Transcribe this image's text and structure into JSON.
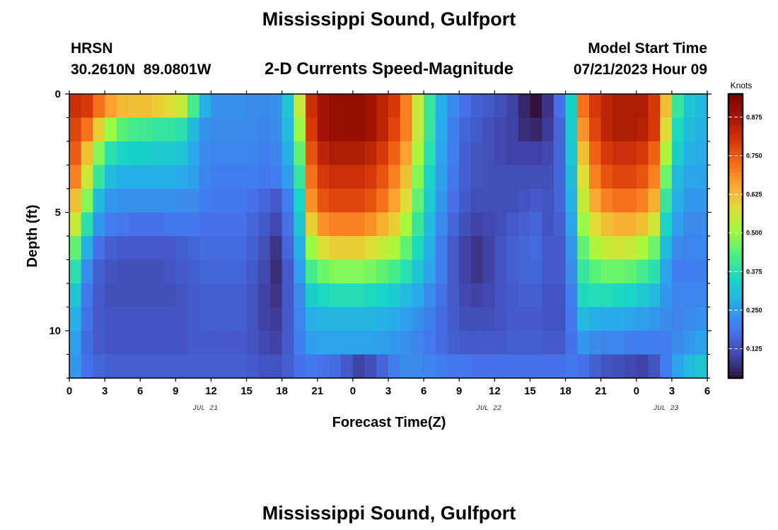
{
  "title": "Mississippi Sound, Gulfport",
  "title_repeat": "Mississippi Sound, Gulfport",
  "station_id": "HRSN",
  "station_coords": "30.2610N  89.0801W",
  "subtitle": "2-D Currents Speed-Magnitude",
  "model_start_label": "Model Start Time",
  "model_start_value": "07/21/2023 Hour 09",
  "chart_data": {
    "type": "heatmap",
    "title": "Mississippi Sound, Gulfport",
    "subtitle": "2-D Currents Speed-Magnitude",
    "xlabel": "Forecast Time(Z)",
    "ylabel": "Depth (ft)",
    "x_hours": [
      0,
      54
    ],
    "x_tick_hours": [
      0,
      3,
      6,
      9,
      12,
      15,
      18,
      21,
      24,
      27,
      30,
      33,
      36,
      39,
      42,
      45,
      48,
      51,
      54
    ],
    "x_tick_labels": [
      "0",
      "3",
      "6",
      "9",
      "12",
      "15",
      "18",
      "21",
      "0",
      "3",
      "6",
      "9",
      "12",
      "15",
      "18",
      "21",
      "0",
      "3",
      "6"
    ],
    "date_labels": [
      {
        "text": "JUL 21",
        "hour": 11.5
      },
      {
        "text": "JUL 22",
        "hour": 35.5
      },
      {
        "text": "JUL 23",
        "hour": 50.5
      }
    ],
    "ylim": [
      0,
      12
    ],
    "y_ticks": [
      0,
      5,
      10
    ],
    "y_tick_labels": [
      "0",
      "5",
      "10"
    ],
    "depth_layers": [
      0.5,
      1.5,
      2.5,
      3.5,
      4.5,
      5.5,
      6.5,
      7.5,
      8.5,
      9.5,
      10.5,
      11.5
    ],
    "colorbar": {
      "label": "Knots",
      "range": [
        0.03,
        0.95
      ],
      "ticks": [
        0.125,
        0.25,
        0.375,
        0.5,
        0.625,
        0.75,
        0.875
      ],
      "tick_labels": [
        "0.125",
        "0.250",
        "0.375",
        "0.500",
        "0.625",
        "0.750",
        "0.875"
      ],
      "colormap": "turbo"
    },
    "speed_knots": {
      "times_hours": [
        0,
        1,
        2,
        3,
        4,
        5,
        6,
        7,
        8,
        9,
        10,
        11,
        12,
        13,
        14,
        15,
        16,
        17,
        18,
        19,
        20,
        21,
        22,
        23,
        24,
        25,
        26,
        27,
        28,
        29,
        30,
        31,
        32,
        33,
        34,
        35,
        36,
        37,
        38,
        39,
        40,
        41,
        42,
        43,
        44,
        45,
        46,
        47,
        48,
        49,
        50,
        51,
        52,
        53
      ],
      "rows": [
        [
          0.82,
          0.8,
          0.72,
          0.66,
          0.63,
          0.62,
          0.62,
          0.6,
          0.58,
          0.55,
          0.42,
          0.28,
          0.23,
          0.23,
          0.23,
          0.22,
          0.22,
          0.23,
          0.32,
          0.55,
          0.82,
          0.88,
          0.9,
          0.9,
          0.9,
          0.88,
          0.84,
          0.8,
          0.7,
          0.55,
          0.4,
          0.28,
          0.22,
          0.18,
          0.15,
          0.14,
          0.12,
          0.1,
          0.06,
          0.03,
          0.08,
          0.18,
          0.34,
          0.72,
          0.8,
          0.84,
          0.86,
          0.86,
          0.86,
          0.8,
          0.62,
          0.4,
          0.32,
          0.3
        ],
        [
          0.78,
          0.72,
          0.6,
          0.5,
          0.44,
          0.42,
          0.41,
          0.4,
          0.4,
          0.38,
          0.3,
          0.23,
          0.22,
          0.22,
          0.22,
          0.22,
          0.21,
          0.22,
          0.3,
          0.5,
          0.8,
          0.88,
          0.9,
          0.9,
          0.9,
          0.88,
          0.84,
          0.78,
          0.7,
          0.55,
          0.4,
          0.27,
          0.2,
          0.16,
          0.14,
          0.12,
          0.11,
          0.1,
          0.07,
          0.06,
          0.09,
          0.16,
          0.33,
          0.68,
          0.78,
          0.84,
          0.86,
          0.86,
          0.85,
          0.8,
          0.58,
          0.36,
          0.3,
          0.28
        ],
        [
          0.75,
          0.62,
          0.48,
          0.38,
          0.35,
          0.34,
          0.34,
          0.33,
          0.33,
          0.32,
          0.27,
          0.22,
          0.21,
          0.21,
          0.21,
          0.21,
          0.2,
          0.21,
          0.28,
          0.45,
          0.76,
          0.84,
          0.86,
          0.86,
          0.86,
          0.84,
          0.8,
          0.74,
          0.66,
          0.52,
          0.38,
          0.26,
          0.2,
          0.15,
          0.13,
          0.12,
          0.11,
          0.1,
          0.1,
          0.1,
          0.11,
          0.16,
          0.32,
          0.62,
          0.74,
          0.8,
          0.82,
          0.82,
          0.8,
          0.74,
          0.52,
          0.34,
          0.28,
          0.27
        ],
        [
          0.7,
          0.56,
          0.4,
          0.3,
          0.28,
          0.28,
          0.28,
          0.28,
          0.28,
          0.27,
          0.25,
          0.21,
          0.2,
          0.2,
          0.2,
          0.2,
          0.19,
          0.2,
          0.25,
          0.4,
          0.72,
          0.8,
          0.82,
          0.82,
          0.82,
          0.8,
          0.76,
          0.7,
          0.62,
          0.48,
          0.35,
          0.25,
          0.19,
          0.15,
          0.13,
          0.12,
          0.12,
          0.12,
          0.12,
          0.12,
          0.12,
          0.16,
          0.3,
          0.58,
          0.7,
          0.76,
          0.78,
          0.78,
          0.76,
          0.7,
          0.46,
          0.3,
          0.26,
          0.26
        ],
        [
          0.62,
          0.48,
          0.3,
          0.24,
          0.23,
          0.23,
          0.23,
          0.23,
          0.23,
          0.22,
          0.22,
          0.2,
          0.19,
          0.19,
          0.19,
          0.18,
          0.16,
          0.14,
          0.2,
          0.35,
          0.68,
          0.76,
          0.78,
          0.78,
          0.78,
          0.76,
          0.72,
          0.66,
          0.58,
          0.45,
          0.33,
          0.24,
          0.18,
          0.14,
          0.12,
          0.12,
          0.12,
          0.12,
          0.13,
          0.14,
          0.13,
          0.16,
          0.28,
          0.55,
          0.65,
          0.7,
          0.72,
          0.72,
          0.7,
          0.64,
          0.4,
          0.28,
          0.24,
          0.24
        ],
        [
          0.55,
          0.38,
          0.24,
          0.2,
          0.19,
          0.18,
          0.18,
          0.18,
          0.19,
          0.19,
          0.19,
          0.18,
          0.18,
          0.18,
          0.18,
          0.16,
          0.14,
          0.11,
          0.18,
          0.32,
          0.6,
          0.68,
          0.7,
          0.7,
          0.7,
          0.68,
          0.64,
          0.6,
          0.52,
          0.4,
          0.3,
          0.22,
          0.16,
          0.12,
          0.1,
          0.11,
          0.12,
          0.14,
          0.15,
          0.16,
          0.13,
          0.15,
          0.26,
          0.5,
          0.58,
          0.62,
          0.64,
          0.64,
          0.62,
          0.56,
          0.35,
          0.25,
          0.22,
          0.22
        ],
        [
          0.45,
          0.28,
          0.18,
          0.15,
          0.14,
          0.14,
          0.14,
          0.14,
          0.14,
          0.15,
          0.16,
          0.17,
          0.17,
          0.17,
          0.17,
          0.15,
          0.12,
          0.08,
          0.16,
          0.28,
          0.5,
          0.58,
          0.6,
          0.6,
          0.6,
          0.58,
          0.55,
          0.52,
          0.45,
          0.36,
          0.28,
          0.2,
          0.14,
          0.1,
          0.08,
          0.1,
          0.13,
          0.15,
          0.16,
          0.17,
          0.14,
          0.14,
          0.24,
          0.45,
          0.52,
          0.55,
          0.56,
          0.55,
          0.52,
          0.46,
          0.3,
          0.22,
          0.21,
          0.21
        ],
        [
          0.38,
          0.22,
          0.15,
          0.13,
          0.12,
          0.12,
          0.12,
          0.12,
          0.13,
          0.14,
          0.15,
          0.16,
          0.16,
          0.16,
          0.16,
          0.14,
          0.11,
          0.07,
          0.14,
          0.25,
          0.42,
          0.46,
          0.48,
          0.48,
          0.48,
          0.47,
          0.45,
          0.42,
          0.38,
          0.32,
          0.26,
          0.2,
          0.14,
          0.1,
          0.08,
          0.1,
          0.13,
          0.15,
          0.16,
          0.16,
          0.14,
          0.14,
          0.22,
          0.4,
          0.44,
          0.46,
          0.46,
          0.45,
          0.42,
          0.38,
          0.26,
          0.2,
          0.2,
          0.2
        ],
        [
          0.32,
          0.19,
          0.14,
          0.12,
          0.12,
          0.12,
          0.12,
          0.12,
          0.12,
          0.13,
          0.14,
          0.15,
          0.15,
          0.15,
          0.15,
          0.13,
          0.1,
          0.08,
          0.14,
          0.22,
          0.34,
          0.36,
          0.37,
          0.37,
          0.37,
          0.36,
          0.35,
          0.33,
          0.3,
          0.27,
          0.22,
          0.18,
          0.14,
          0.11,
          0.1,
          0.11,
          0.13,
          0.14,
          0.15,
          0.15,
          0.13,
          0.13,
          0.2,
          0.36,
          0.37,
          0.37,
          0.36,
          0.35,
          0.33,
          0.3,
          0.24,
          0.21,
          0.21,
          0.21
        ],
        [
          0.28,
          0.18,
          0.14,
          0.13,
          0.13,
          0.13,
          0.13,
          0.13,
          0.13,
          0.13,
          0.14,
          0.15,
          0.15,
          0.15,
          0.15,
          0.13,
          0.1,
          0.09,
          0.14,
          0.21,
          0.28,
          0.29,
          0.29,
          0.29,
          0.29,
          0.29,
          0.28,
          0.27,
          0.25,
          0.23,
          0.2,
          0.17,
          0.14,
          0.12,
          0.12,
          0.12,
          0.13,
          0.14,
          0.14,
          0.14,
          0.13,
          0.13,
          0.19,
          0.3,
          0.28,
          0.27,
          0.27,
          0.26,
          0.25,
          0.24,
          0.22,
          0.21,
          0.22,
          0.23
        ],
        [
          0.25,
          0.17,
          0.14,
          0.13,
          0.13,
          0.13,
          0.13,
          0.13,
          0.13,
          0.13,
          0.14,
          0.14,
          0.14,
          0.14,
          0.14,
          0.13,
          0.11,
          0.1,
          0.14,
          0.2,
          0.25,
          0.26,
          0.26,
          0.26,
          0.26,
          0.26,
          0.25,
          0.24,
          0.23,
          0.21,
          0.19,
          0.17,
          0.15,
          0.14,
          0.14,
          0.14,
          0.14,
          0.15,
          0.15,
          0.15,
          0.14,
          0.14,
          0.18,
          0.24,
          0.22,
          0.21,
          0.21,
          0.2,
          0.2,
          0.2,
          0.2,
          0.22,
          0.24,
          0.26
        ],
        [
          0.24,
          0.18,
          0.16,
          0.15,
          0.15,
          0.15,
          0.15,
          0.15,
          0.15,
          0.15,
          0.15,
          0.15,
          0.15,
          0.15,
          0.15,
          0.14,
          0.13,
          0.13,
          0.15,
          0.18,
          0.19,
          0.18,
          0.17,
          0.14,
          0.1,
          0.12,
          0.16,
          0.2,
          0.22,
          0.22,
          0.21,
          0.2,
          0.19,
          0.19,
          0.18,
          0.18,
          0.18,
          0.18,
          0.18,
          0.18,
          0.18,
          0.18,
          0.19,
          0.18,
          0.15,
          0.13,
          0.12,
          0.11,
          0.1,
          0.13,
          0.2,
          0.26,
          0.3,
          0.32
        ]
      ]
    }
  }
}
